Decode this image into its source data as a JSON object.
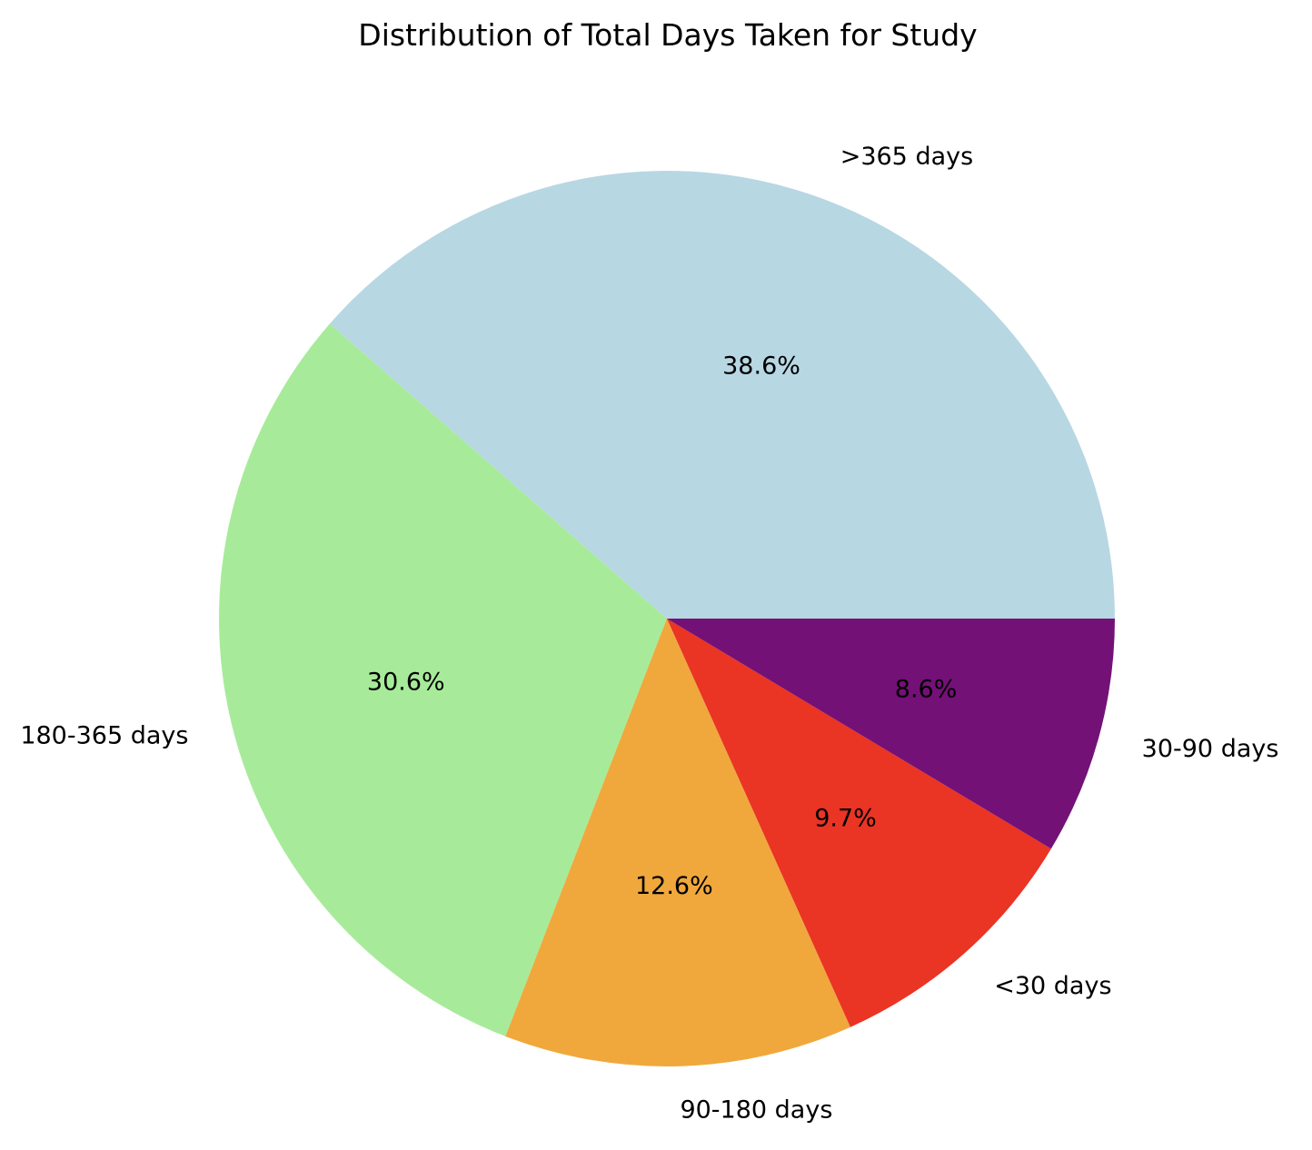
{
  "chart_data": {
    "type": "pie",
    "title": "Distribution of Total Days Taken for Study",
    "slices": [
      {
        "label": ">365 days",
        "value": 38.6,
        "pct_label": "38.6%",
        "color": "#b7d7e3"
      },
      {
        "label": "180-365 days",
        "value": 30.6,
        "pct_label": "30.6%",
        "color": "#a7eb9a"
      },
      {
        "label": "90-180 days",
        "value": 12.6,
        "pct_label": "12.6%",
        "color": "#f0a83c"
      },
      {
        "label": "<30 days",
        "value": 9.7,
        "pct_label": "9.7%",
        "color": "#ea3424"
      },
      {
        "label": "30-90 days",
        "value": 8.6,
        "pct_label": "8.6%",
        "color": "#731177"
      }
    ],
    "start_angle_deg": 0,
    "direction": "counterclockwise",
    "legend": "none"
  }
}
